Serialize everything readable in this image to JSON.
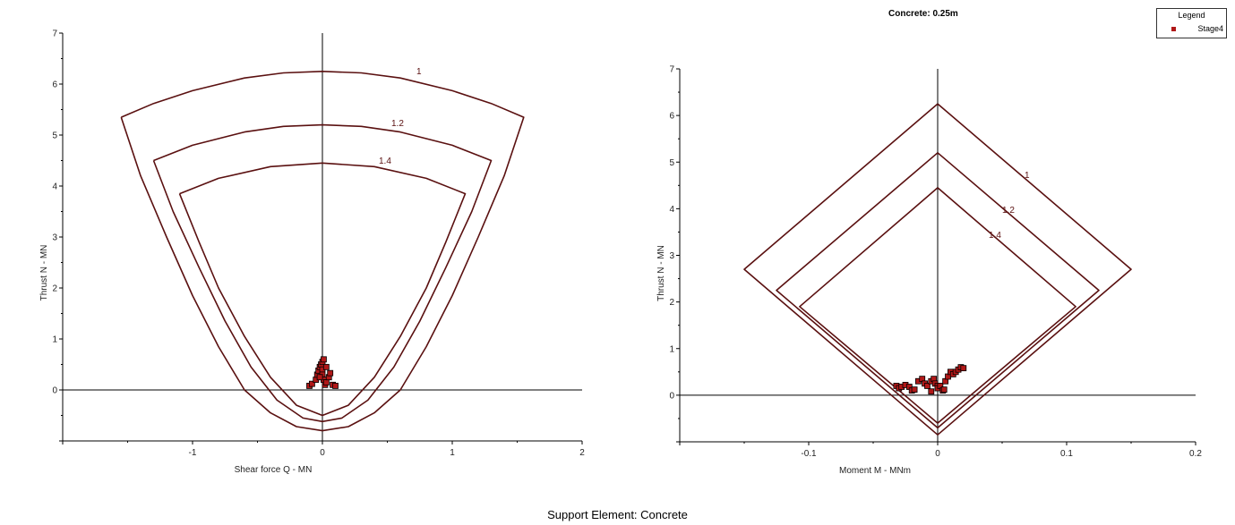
{
  "title": "Concrete: 0.25m",
  "caption": "Support Element: Concrete",
  "legend": {
    "title": "Legend",
    "entries": [
      {
        "label": "Stage4",
        "color": "#b01818"
      }
    ]
  },
  "colors": {
    "envelope": "#5a1010",
    "points_fill": "#b01818",
    "points_edge": "#000000",
    "axes": "#000000"
  },
  "chart_data": [
    {
      "type": "scatter",
      "xlabel": "Shear force Q - MN",
      "ylabel": "Thrust N - MN",
      "xlim": [
        -2,
        2
      ],
      "ylim": [
        -1,
        7
      ],
      "xticks": [
        -1,
        0,
        1,
        2
      ],
      "yticks": [
        0,
        1,
        2,
        3,
        4,
        5,
        6,
        7
      ],
      "envelopes": [
        {
          "name": "1",
          "points": [
            [
              -1.55,
              5.35
            ],
            [
              -1.3,
              5.62
            ],
            [
              -1,
              5.87
            ],
            [
              -0.6,
              6.12
            ],
            [
              -0.3,
              6.22
            ],
            [
              0,
              6.25
            ],
            [
              0.3,
              6.22
            ],
            [
              0.6,
              6.12
            ],
            [
              1,
              5.87
            ],
            [
              1.3,
              5.62
            ],
            [
              1.55,
              5.35
            ],
            [
              1.4,
              4.2
            ],
            [
              1.2,
              3.0
            ],
            [
              1.0,
              1.85
            ],
            [
              0.8,
              0.85
            ],
            [
              0.6,
              0.0
            ],
            [
              0.4,
              -0.45
            ],
            [
              0.2,
              -0.72
            ],
            [
              0,
              -0.8
            ],
            [
              -0.2,
              -0.72
            ],
            [
              -0.4,
              -0.45
            ],
            [
              -0.6,
              0.0
            ],
            [
              -0.8,
              0.85
            ],
            [
              -1.0,
              1.85
            ],
            [
              -1.2,
              3.0
            ],
            [
              -1.4,
              4.2
            ],
            [
              -1.55,
              5.35
            ]
          ]
        },
        {
          "name": "1.2",
          "points": [
            [
              -1.3,
              4.5
            ],
            [
              -1.0,
              4.8
            ],
            [
              -0.6,
              5.06
            ],
            [
              -0.3,
              5.17
            ],
            [
              0,
              5.2
            ],
            [
              0.3,
              5.17
            ],
            [
              0.6,
              5.06
            ],
            [
              1.0,
              4.8
            ],
            [
              1.3,
              4.5
            ],
            [
              1.15,
              3.5
            ],
            [
              0.95,
              2.4
            ],
            [
              0.75,
              1.35
            ],
            [
              0.55,
              0.45
            ],
            [
              0.35,
              -0.2
            ],
            [
              0.15,
              -0.55
            ],
            [
              0,
              -0.62
            ],
            [
              -0.15,
              -0.55
            ],
            [
              -0.35,
              -0.2
            ],
            [
              -0.55,
              0.45
            ],
            [
              -0.75,
              1.35
            ],
            [
              -0.95,
              2.4
            ],
            [
              -1.15,
              3.5
            ],
            [
              -1.3,
              4.5
            ]
          ]
        },
        {
          "name": "1.4",
          "points": [
            [
              -1.1,
              3.85
            ],
            [
              -0.8,
              4.15
            ],
            [
              -0.4,
              4.38
            ],
            [
              0,
              4.45
            ],
            [
              0.4,
              4.38
            ],
            [
              0.8,
              4.15
            ],
            [
              1.1,
              3.85
            ],
            [
              0.95,
              2.9
            ],
            [
              0.8,
              2.0
            ],
            [
              0.6,
              1.05
            ],
            [
              0.4,
              0.25
            ],
            [
              0.2,
              -0.3
            ],
            [
              0,
              -0.5
            ],
            [
              -0.2,
              -0.3
            ],
            [
              -0.4,
              0.25
            ],
            [
              -0.6,
              1.05
            ],
            [
              -0.8,
              2.0
            ],
            [
              -0.95,
              2.9
            ],
            [
              -1.1,
              3.85
            ]
          ]
        }
      ],
      "series": [
        {
          "name": "Stage4",
          "points": [
            [
              -0.1,
              0.08
            ],
            [
              -0.08,
              0.12
            ],
            [
              -0.05,
              0.2
            ],
            [
              -0.04,
              0.3
            ],
            [
              -0.03,
              0.38
            ],
            [
              -0.02,
              0.45
            ],
            [
              -0.01,
              0.5
            ],
            [
              0,
              0.55
            ],
            [
              0.01,
              0.6
            ],
            [
              0,
              0.4
            ],
            [
              0,
              0.3
            ],
            [
              0.01,
              0.2
            ],
            [
              0.02,
              0.1
            ],
            [
              0.03,
              0.15
            ],
            [
              0.05,
              0.25
            ],
            [
              0.06,
              0.33
            ],
            [
              0.08,
              0.1
            ],
            [
              0.1,
              0.08
            ],
            [
              -0.02,
              0.25
            ],
            [
              0.03,
              0.45
            ]
          ]
        }
      ]
    },
    {
      "type": "scatter",
      "xlabel": "Moment M - MNm",
      "ylabel": "Thrust N - MN",
      "xlim": [
        -0.2,
        0.2
      ],
      "ylim": [
        -1,
        7
      ],
      "xticks": [
        -0.1,
        0,
        0.1,
        0.2
      ],
      "yticks": [
        0,
        1,
        2,
        3,
        4,
        5,
        6,
        7
      ],
      "envelopes": [
        {
          "name": "1",
          "points": [
            [
              0,
              6.25
            ],
            [
              0.15,
              2.7
            ],
            [
              0,
              -0.85
            ],
            [
              -0.15,
              2.7
            ],
            [
              0,
              6.25
            ]
          ]
        },
        {
          "name": "1.2",
          "points": [
            [
              0,
              5.2
            ],
            [
              0.125,
              2.25
            ],
            [
              0,
              -0.7
            ],
            [
              -0.125,
              2.25
            ],
            [
              0,
              5.2
            ]
          ]
        },
        {
          "name": "1.4",
          "points": [
            [
              0,
              4.45
            ],
            [
              0.107,
              1.9
            ],
            [
              0,
              -0.6
            ],
            [
              -0.107,
              1.9
            ],
            [
              0,
              4.45
            ]
          ]
        }
      ],
      "series": [
        {
          "name": "Stage4",
          "points": [
            [
              -0.032,
              0.2
            ],
            [
              -0.03,
              0.15
            ],
            [
              -0.028,
              0.18
            ],
            [
              -0.025,
              0.22
            ],
            [
              -0.022,
              0.18
            ],
            [
              -0.02,
              0.1
            ],
            [
              -0.018,
              0.12
            ],
            [
              -0.015,
              0.3
            ],
            [
              -0.012,
              0.35
            ],
            [
              -0.01,
              0.25
            ],
            [
              -0.008,
              0.2
            ],
            [
              -0.005,
              0.3
            ],
            [
              -0.003,
              0.35
            ],
            [
              -0.002,
              0.25
            ],
            [
              0,
              0.2
            ],
            [
              0,
              0.15
            ],
            [
              0.002,
              0.2
            ],
            [
              0.004,
              0.1
            ],
            [
              0.006,
              0.3
            ],
            [
              0.008,
              0.4
            ],
            [
              0.01,
              0.5
            ],
            [
              0.012,
              0.45
            ],
            [
              0.014,
              0.5
            ],
            [
              0.016,
              0.55
            ],
            [
              0.018,
              0.6
            ],
            [
              0.02,
              0.58
            ],
            [
              0.005,
              0.12
            ],
            [
              -0.005,
              0.08
            ]
          ]
        }
      ]
    }
  ]
}
